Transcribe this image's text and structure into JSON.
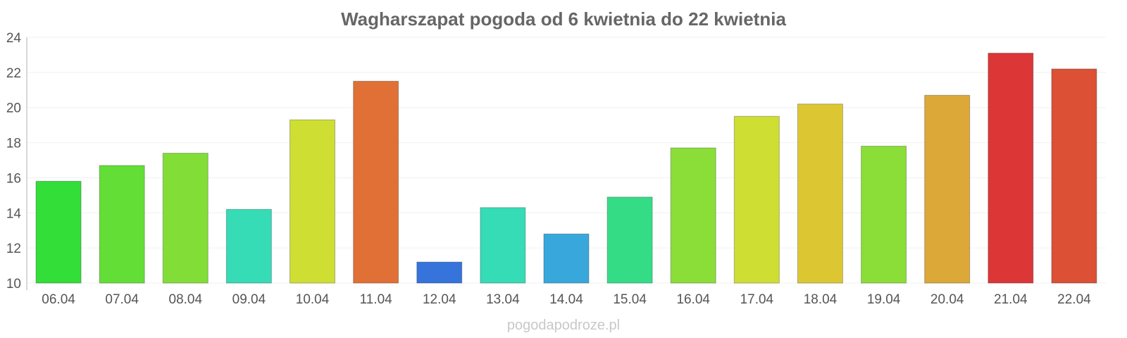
{
  "chart_data": {
    "type": "bar",
    "title": "Wagharszapat pogoda od 6 kwietnia do 22 kwietnia",
    "xlabel": "",
    "ylabel": "",
    "ylim": [
      10,
      24
    ],
    "yticks": [
      10,
      12,
      14,
      16,
      18,
      20,
      22,
      24
    ],
    "grid": true,
    "legend": "none",
    "categories": [
      "06.04",
      "07.04",
      "08.04",
      "09.04",
      "10.04",
      "11.04",
      "12.04",
      "13.04",
      "14.04",
      "15.04",
      "16.04",
      "17.04",
      "18.04",
      "19.04",
      "20.04",
      "21.04",
      "22.04"
    ],
    "values": [
      15.8,
      16.7,
      17.4,
      14.2,
      19.3,
      21.5,
      11.2,
      14.3,
      12.8,
      14.9,
      17.7,
      19.5,
      20.2,
      17.8,
      20.7,
      23.1,
      22.2
    ],
    "colors": [
      "#32de37",
      "#63de37",
      "#82de37",
      "#35dcb6",
      "#cfde32",
      "#e07035",
      "#3674dc",
      "#35dcb6",
      "#38a8dc",
      "#34dc86",
      "#8ade37",
      "#cfde32",
      "#dcc732",
      "#8ade37",
      "#dca837",
      "#dc3636",
      "#dc5036"
    ]
  },
  "watermark": "pogodapodroze.pl"
}
